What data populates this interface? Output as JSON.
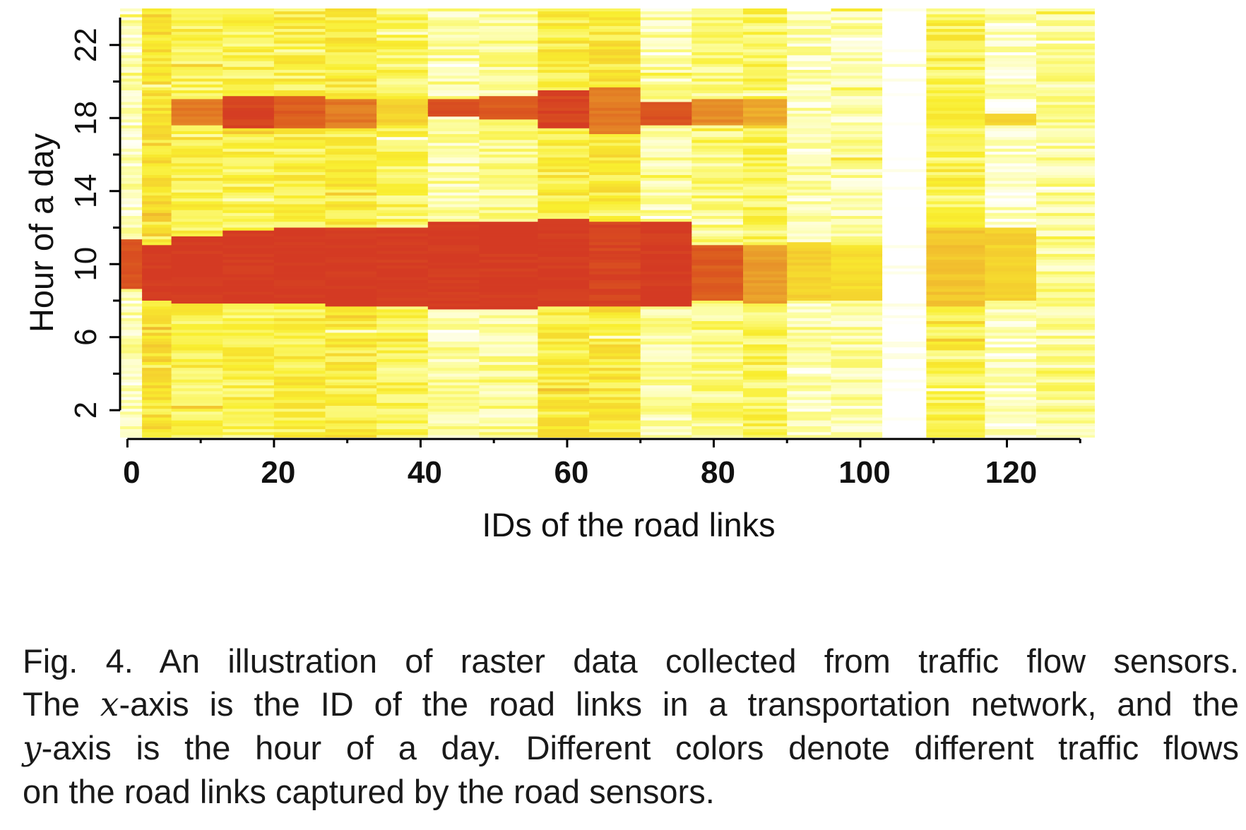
{
  "chart_data": {
    "type": "heatmap",
    "title": "",
    "xlabel": "IDs of the road links",
    "ylabel": "Hour of a day",
    "xlim": [
      -1,
      132
    ],
    "ylim": [
      0.5,
      24
    ],
    "x_ticks": [
      "0",
      "20",
      "40",
      "60",
      "80",
      "100",
      "120"
    ],
    "y_ticks": [
      "2",
      "6",
      "10",
      "14",
      "18",
      "22"
    ],
    "colormap": [
      "#d43a23",
      "#dd5f1f",
      "#e8972a",
      "#f3c62f",
      "#f9ee2f",
      "#fcfd9a",
      "#ffffff"
    ],
    "color_meaning": "traffic flow (red = high, yellow/white = low)",
    "groups": [
      {
        "x_range": [
          -1,
          2
        ],
        "rush": [
          [
            8.6,
            11.3
          ]
        ],
        "rush_level": 0.1,
        "base": 0.88
      },
      {
        "x_range": [
          2,
          6
        ],
        "rush": [
          [
            8.0,
            11.0
          ]
        ],
        "rush_level": 0.0,
        "base": 0.62
      },
      {
        "x_range": [
          6,
          13
        ],
        "rush": [
          [
            7.8,
            11.5
          ],
          [
            17.5,
            19.0
          ]
        ],
        "rush_level": 0.0,
        "evening_level": 0.25,
        "base": 0.72
      },
      {
        "x_range": [
          13,
          20
        ],
        "rush": [
          [
            7.8,
            11.8
          ],
          [
            17.4,
            19.1
          ]
        ],
        "rush_level": 0.0,
        "evening_level": 0.05,
        "base": 0.72
      },
      {
        "x_range": [
          20,
          27
        ],
        "rush": [
          [
            7.8,
            12.0
          ],
          [
            17.4,
            19.2
          ]
        ],
        "rush_level": 0.0,
        "evening_level": 0.15,
        "base": 0.7
      },
      {
        "x_range": [
          27,
          34
        ],
        "rush": [
          [
            7.6,
            12.0
          ],
          [
            17.4,
            19.0
          ]
        ],
        "rush_level": 0.0,
        "evening_level": 0.25,
        "base": 0.68
      },
      {
        "x_range": [
          34,
          41
        ],
        "rush": [
          [
            7.6,
            12.0
          ],
          [
            17.6,
            19.0
          ]
        ],
        "rush_level": 0.0,
        "evening_level": 0.55,
        "base": 0.74
      },
      {
        "x_range": [
          41,
          48
        ],
        "rush": [
          [
            7.4,
            12.2
          ],
          [
            18.0,
            19.0
          ]
        ],
        "rush_level": 0.0,
        "evening_level": 0.1,
        "base": 0.85
      },
      {
        "x_range": [
          48,
          56
        ],
        "rush": [
          [
            7.4,
            12.2
          ],
          [
            17.8,
            19.2
          ]
        ],
        "rush_level": 0.0,
        "evening_level": 0.15,
        "base": 0.82
      },
      {
        "x_range": [
          56,
          63
        ],
        "rush": [
          [
            7.6,
            12.4
          ],
          [
            17.4,
            19.4
          ]
        ],
        "rush_level": 0.0,
        "evening_level": 0.05,
        "base": 0.68
      },
      {
        "x_range": [
          63,
          70
        ],
        "rush": [
          [
            7.6,
            12.3
          ],
          [
            17.0,
            19.6
          ]
        ],
        "rush_level": 0.05,
        "evening_level": 0.25,
        "base": 0.66
      },
      {
        "x_range": [
          70,
          77
        ],
        "rush": [
          [
            7.6,
            12.3
          ],
          [
            17.5,
            18.8
          ]
        ],
        "rush_level": 0.0,
        "evening_level": 0.1,
        "base": 0.86
      },
      {
        "x_range": [
          77,
          84
        ],
        "rush": [
          [
            8.0,
            11.0
          ],
          [
            17.5,
            19.0
          ]
        ],
        "rush_level": 0.15,
        "evening_level": 0.3,
        "base": 0.8
      },
      {
        "x_range": [
          84,
          90
        ],
        "rush": [
          [
            7.8,
            11.0
          ],
          [
            17.5,
            19.0
          ]
        ],
        "rush_level": 0.35,
        "evening_level": 0.4,
        "base": 0.74
      },
      {
        "x_range": [
          90,
          96
        ],
        "rush": [
          [
            8.0,
            11.2
          ]
        ],
        "rush_level": 0.55,
        "base": 0.88
      },
      {
        "x_range": [
          96,
          103
        ],
        "rush": [
          [
            8.0,
            11.0
          ]
        ],
        "rush_level": 0.6,
        "base": 0.86
      },
      {
        "x_range": [
          103,
          109
        ],
        "rush": [],
        "rush_level": 1.0,
        "base": 1.05
      },
      {
        "x_range": [
          109,
          117
        ],
        "rush": [
          [
            7.6,
            12.0
          ]
        ],
        "rush_level": 0.5,
        "base": 0.72
      },
      {
        "x_range": [
          117,
          124
        ],
        "rush": [
          [
            8.0,
            12.0
          ],
          [
            17.6,
            18.2
          ]
        ],
        "rush_level": 0.55,
        "evening_level": 0.55,
        "base": 0.9
      },
      {
        "x_range": [
          124,
          132
        ],
        "rush": [],
        "rush_level": 0.8,
        "base": 0.84
      }
    ]
  },
  "caption": {
    "line1": "Fig. 4.  An illustration of raster data collected from traffic flow sensors.",
    "line2_pre": "The ",
    "line2_var": "x",
    "line2_post": "-axis is the ID of the road links in a transportation network, and the",
    "line3_var": "y",
    "line3_post": "-axis is the hour of a day. Different colors denote different traffic flows",
    "line4": "on the road links captured by the road sensors."
  }
}
